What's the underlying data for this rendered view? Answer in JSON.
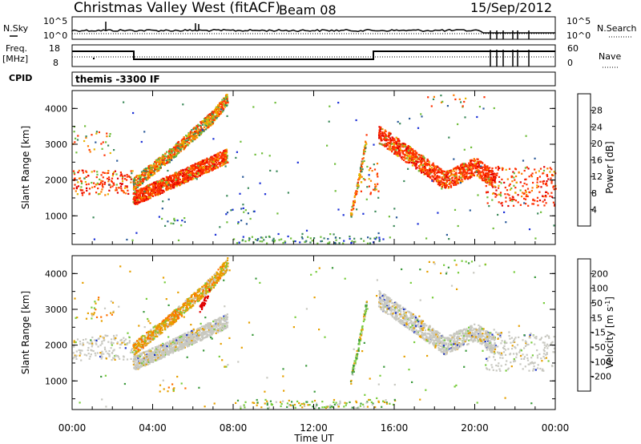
{
  "header": {
    "title": "Christmas Valley West (fitACF)",
    "beam": "Beam 08",
    "date": "15/Sep/2012"
  },
  "top_panels": {
    "nsky_label": "N.Sky",
    "nsky_ticks": [
      "10^5",
      "10^0"
    ],
    "nsearch_label": "N.Search",
    "nsearch_ticks": [
      "10^5",
      "10^0"
    ],
    "freq_label_line1": "Freq.",
    "freq_label_line2": "[MHz]",
    "freq_ticks": [
      "18",
      "8"
    ],
    "nave_label": "Nave",
    "nave_ticks": [
      "60",
      "0"
    ],
    "cpid_label": "CPID",
    "cpid_text": "themis -3300 IF"
  },
  "chart_data": [
    {
      "type": "heatmap",
      "name": "power-panel",
      "ylabel": "Slant Range [km]",
      "ylim": [
        200,
        4500
      ],
      "yticks": [
        "1000",
        "2000",
        "3000",
        "4000"
      ],
      "xlim_hours": [
        0,
        24
      ],
      "colorbar_label": "Power [dB]",
      "colorbar_ticks": [
        "4",
        "8",
        "12",
        "16",
        "20",
        "24",
        "28"
      ],
      "colorbar_colors": [
        "#1a2fd6",
        "#2a5a9a",
        "#3c8a5a",
        "#6fbd3a",
        "#e6b400",
        "#ff7a00",
        "#ff3000",
        "#e00000"
      ]
    },
    {
      "type": "heatmap",
      "name": "velocity-panel",
      "ylabel": "Slant Range [km]",
      "ylim": [
        200,
        4500
      ],
      "yticks": [
        "1000",
        "2000",
        "3000",
        "4000"
      ],
      "xlim_hours": [
        0,
        24
      ],
      "xlabel": "Time UT",
      "xticks": [
        "00:00",
        "04:00",
        "08:00",
        "12:00",
        "16:00",
        "20:00",
        "00:00"
      ],
      "colorbar_label": "Velocity [m s",
      "colorbar_label_sup": "-1",
      "colorbar_label_end": "]",
      "colorbar_ticks": [
        "200",
        "100",
        "50",
        "15",
        "-15",
        "-50",
        "-100",
        "-200"
      ],
      "colorbar_colors": [
        "#1830c8",
        "#2d6a8a",
        "#3c9a3c",
        "#78cc3c",
        "#c8c8c0",
        "#e6a000",
        "#ff7000",
        "#ff3000",
        "#e00000"
      ]
    }
  ],
  "colors": {
    "ground_scatter": "#c8c8c0"
  }
}
